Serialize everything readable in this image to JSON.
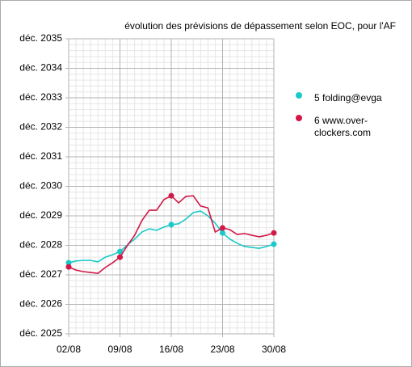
{
  "chart_data": {
    "type": "line",
    "title": "évolution des prévisions de dépassement selon EOC, pour l'AF",
    "x": [
      2,
      3,
      4,
      5,
      6,
      7,
      8,
      9,
      10,
      11,
      12,
      13,
      14,
      15,
      16,
      17,
      18,
      19,
      20,
      21,
      22,
      23,
      24,
      25,
      26,
      27,
      28,
      29,
      30
    ],
    "series": [
      {
        "name": "5 folding@evga",
        "color": "#1ac9c9",
        "values": [
          2027.41,
          2027.47,
          2027.49,
          2027.49,
          2027.44,
          2027.6,
          2027.68,
          2027.79,
          2028.01,
          2028.21,
          2028.45,
          2028.56,
          2028.51,
          2028.62,
          2028.7,
          2028.73,
          2028.89,
          2029.11,
          2029.16,
          2029.0,
          2028.75,
          2028.42,
          2028.21,
          2028.07,
          2027.96,
          2027.93,
          2027.9,
          2027.96,
          2028.04
        ]
      },
      {
        "name": "6 www.over-clockers.com",
        "color": "#d11847",
        "values": [
          2027.27,
          2027.16,
          2027.11,
          2027.08,
          2027.05,
          2027.25,
          2027.41,
          2027.6,
          2027.99,
          2028.34,
          2028.84,
          2029.19,
          2029.19,
          2029.55,
          2029.68,
          2029.44,
          2029.66,
          2029.68,
          2029.33,
          2029.27,
          2028.45,
          2028.59,
          2028.53,
          2028.37,
          2028.4,
          2028.34,
          2028.29,
          2028.34,
          2028.42
        ]
      }
    ],
    "marker_every": 7,
    "xlim": [
      2,
      30
    ],
    "xticks": [
      {
        "value": 2,
        "label": "02/08"
      },
      {
        "value": 9,
        "label": "09/08"
      },
      {
        "value": 16,
        "label": "16/08"
      },
      {
        "value": 23,
        "label": "23/08"
      },
      {
        "value": 30,
        "label": "30/08"
      }
    ],
    "ylim": [
      2025,
      2035
    ],
    "yticks": [
      {
        "value": 2025,
        "label": "déc. 2025"
      },
      {
        "value": 2026,
        "label": "déc. 2026"
      },
      {
        "value": 2027,
        "label": "déc. 2027"
      },
      {
        "value": 2028,
        "label": "déc. 2028"
      },
      {
        "value": 2029,
        "label": "déc. 2029"
      },
      {
        "value": 2030,
        "label": "déc. 2030"
      },
      {
        "value": 2031,
        "label": "déc. 2031"
      },
      {
        "value": 2032,
        "label": "déc. 2032"
      },
      {
        "value": 2033,
        "label": "déc. 2033"
      },
      {
        "value": 2034,
        "label": "déc. 2034"
      },
      {
        "value": 2035,
        "label": "déc. 2035"
      }
    ],
    "grid": true,
    "minor_grid": {
      "x": 1,
      "y": 0.2
    },
    "legend": "right"
  }
}
